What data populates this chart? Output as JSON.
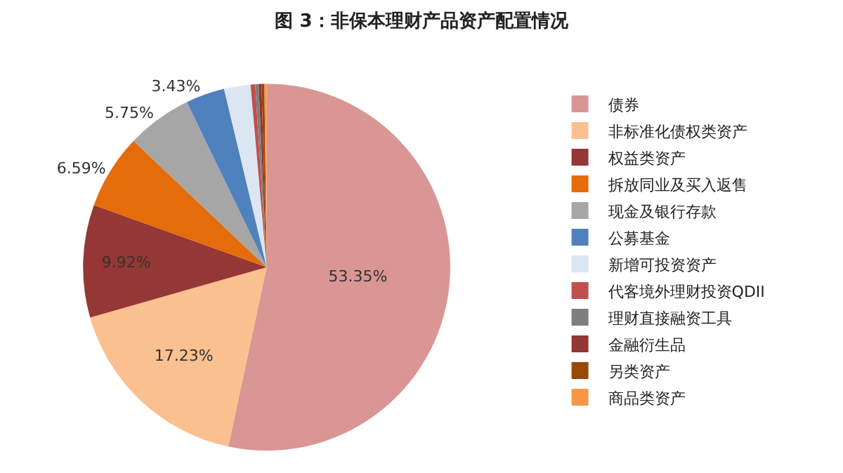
{
  "chart_data": {
    "type": "pie",
    "title": "图 3：非保本理财产品资产配置情况",
    "categories": [
      "债券",
      "非标准化债权类资产",
      "权益类资产",
      "拆放同业及买入返售",
      "现金及银行存款",
      "公募基金",
      "新增可投资资产",
      "代客境外理财投资QDII",
      "理财直接融资工具",
      "金融衍生品",
      "另类资产",
      "商品类资产"
    ],
    "values": [
      53.35,
      17.23,
      9.92,
      6.59,
      5.75,
      3.43,
      2.33,
      0.4,
      0.3,
      0.25,
      0.25,
      0.2
    ],
    "value_labels": [
      "53.35%",
      "17.23%",
      "9.92%",
      "6.59%",
      "5.75%",
      "3.43%",
      null,
      null,
      null,
      null,
      null,
      null
    ],
    "colors": [
      "#d99694",
      "#fac090",
      "#953735",
      "#e46c0a",
      "#a6a6a6",
      "#4f81bd",
      "#dce6f2",
      "#c0504d",
      "#7f7f7f",
      "#943634",
      "#984807",
      "#f79646"
    ],
    "legend": "right"
  }
}
